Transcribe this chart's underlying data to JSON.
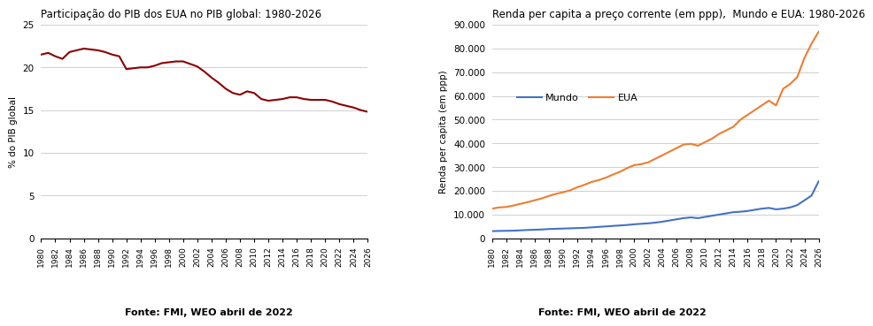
{
  "years": [
    1980,
    1981,
    1982,
    1983,
    1984,
    1985,
    1986,
    1987,
    1988,
    1989,
    1990,
    1991,
    1992,
    1993,
    1994,
    1995,
    1996,
    1997,
    1998,
    1999,
    2000,
    2001,
    2002,
    2003,
    2004,
    2005,
    2006,
    2007,
    2008,
    2009,
    2010,
    2011,
    2012,
    2013,
    2014,
    2015,
    2016,
    2017,
    2018,
    2019,
    2020,
    2021,
    2022,
    2023,
    2024,
    2025,
    2026
  ],
  "pib_share": [
    21.5,
    21.7,
    21.3,
    21.0,
    21.8,
    22.0,
    22.2,
    22.1,
    22.0,
    21.8,
    21.5,
    21.3,
    19.8,
    19.9,
    20.0,
    20.0,
    20.2,
    20.5,
    20.6,
    20.7,
    20.7,
    20.4,
    20.1,
    19.5,
    18.8,
    18.2,
    17.5,
    17.0,
    16.8,
    17.2,
    17.0,
    16.3,
    16.1,
    16.2,
    16.3,
    16.5,
    16.5,
    16.3,
    16.2,
    16.2,
    16.2,
    16.0,
    15.7,
    15.5,
    15.3,
    15.0,
    14.8
  ],
  "mundo_pc": [
    3000,
    3100,
    3150,
    3200,
    3350,
    3500,
    3600,
    3700,
    3900,
    4000,
    4100,
    4200,
    4300,
    4400,
    4600,
    4800,
    5000,
    5200,
    5400,
    5600,
    5900,
    6100,
    6300,
    6600,
    7000,
    7500,
    8000,
    8500,
    8800,
    8500,
    9000,
    9500,
    10000,
    10500,
    11000,
    11200,
    11500,
    12000,
    12500,
    12800,
    12200,
    12500,
    13000,
    14000,
    16000,
    18000,
    24000
  ],
  "eua_pc": [
    12500,
    13000,
    13200,
    13800,
    14500,
    15200,
    16000,
    16800,
    17800,
    18700,
    19400,
    20200,
    21500,
    22500,
    23700,
    24500,
    25500,
    26800,
    28000,
    29500,
    30800,
    31200,
    32000,
    33500,
    35000,
    36500,
    38000,
    39500,
    39800,
    39000,
    40500,
    42000,
    44000,
    45500,
    47000,
    50000,
    52000,
    54000,
    56000,
    58000,
    56000,
    63000,
    65000,
    68000,
    76000,
    82000,
    87000
  ],
  "left_title": "Participação do PIB dos EUA no PIB global: 1980-2026",
  "right_title": "Renda per capita a preço corrente (em ppp),  Mundo e EUA: 1980-2026",
  "left_ylabel": "% do PIB global",
  "right_ylabel": "Renda per capita (em ppp)",
  "fonte": "Fonte: FMI, WEO abril de 2022",
  "left_ylim": [
    0,
    25
  ],
  "right_ylim": [
    0,
    90000
  ],
  "left_yticks": [
    0,
    5,
    10,
    15,
    20,
    25
  ],
  "right_yticks": [
    0,
    10000,
    20000,
    30000,
    40000,
    50000,
    60000,
    70000,
    80000,
    90000
  ],
  "line_color_share": "#8B0000",
  "line_color_mundo": "#4472C4",
  "line_color_eua": "#ED7D31",
  "bg_color": "#FFFFFF",
  "grid_color": "#C8C8C8",
  "legend_mundo": "Mundo",
  "legend_eua": "EUA"
}
